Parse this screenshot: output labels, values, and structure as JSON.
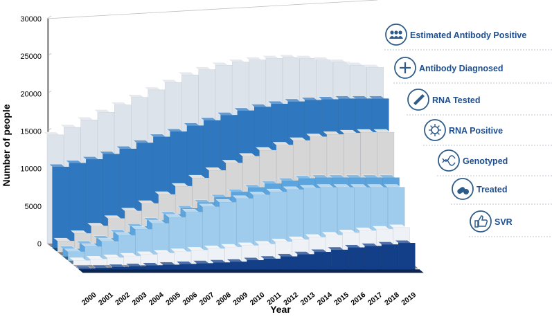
{
  "chart_data": {
    "type": "bar",
    "style": "3d-stacked-depth",
    "title": "",
    "xlabel": "Year",
    "ylabel": "Number of people",
    "ylim": [
      0,
      30000
    ],
    "yticks": [
      "0",
      "5000",
      "10000",
      "15000",
      "20000",
      "25000",
      "30000"
    ],
    "categories": [
      "2000",
      "2001",
      "2002",
      "2003",
      "2004",
      "2005",
      "2006",
      "2007",
      "2008",
      "2009",
      "2010",
      "2011",
      "2012",
      "2013",
      "2014",
      "2015",
      "2016",
      "2017",
      "2018",
      "2019"
    ],
    "series": [
      {
        "name": "Estimated Antibody Positive",
        "icon": "people-icon",
        "color": "#dde3ea",
        "values": [
          14500,
          15500,
          16500,
          17500,
          18500,
          19500,
          20500,
          21500,
          22500,
          23200,
          23800,
          24200,
          24500,
          24700,
          24800,
          24700,
          24500,
          24200,
          23800,
          23500
        ]
      },
      {
        "name": "Antibody Diagnosed",
        "icon": "plus-icon",
        "color": "#2f78c0",
        "values": [
          10800,
          11300,
          11800,
          12500,
          13200,
          14000,
          14800,
          15500,
          16300,
          17000,
          17700,
          18300,
          18800,
          19200,
          19500,
          19700,
          19800,
          19900,
          19900,
          19900
        ]
      },
      {
        "name": "RNA Tested",
        "icon": "test-tube-icon",
        "color": "#d6d6d6",
        "values": [
          1500,
          2500,
          3500,
          4500,
          5500,
          6500,
          7700,
          8800,
          9900,
          10900,
          11900,
          12800,
          13600,
          14300,
          14900,
          15400,
          15700,
          15900,
          16000,
          16000
        ]
      },
      {
        "name": "RNA Positive",
        "icon": "virus-icon",
        "color": "#5ba4dd",
        "values": [
          1000,
          1700,
          2400,
          3200,
          4000,
          4800,
          5600,
          6400,
          7200,
          7900,
          8600,
          9200,
          9700,
          10100,
          10400,
          10500,
          10500,
          10500,
          10500,
          10500
        ]
      },
      {
        "name": "Genotyped",
        "icon": "dna-icon",
        "color": "#9fcbec",
        "values": [
          1200,
          1900,
          2600,
          3400,
          4200,
          5000,
          5800,
          6500,
          7200,
          7800,
          8300,
          8800,
          9200,
          9500,
          9700,
          9800,
          9800,
          9800,
          9800,
          9800
        ]
      },
      {
        "name": "Treated",
        "icon": "pills-icon",
        "color": "#eef1f6",
        "values": [
          600,
          800,
          1000,
          1200,
          1400,
          1600,
          1800,
          2000,
          2200,
          2400,
          2600,
          2800,
          3100,
          3400,
          3700,
          4000,
          4300,
          4600,
          4800,
          5000
        ]
      },
      {
        "name": "SVR",
        "icon": "thumbs-up-icon",
        "color": "#123f87",
        "values": [
          100,
          200,
          300,
          400,
          500,
          600,
          700,
          800,
          900,
          1000,
          1200,
          1400,
          1700,
          2000,
          2300,
          2600,
          2900,
          3100,
          3300,
          3500
        ]
      }
    ]
  }
}
